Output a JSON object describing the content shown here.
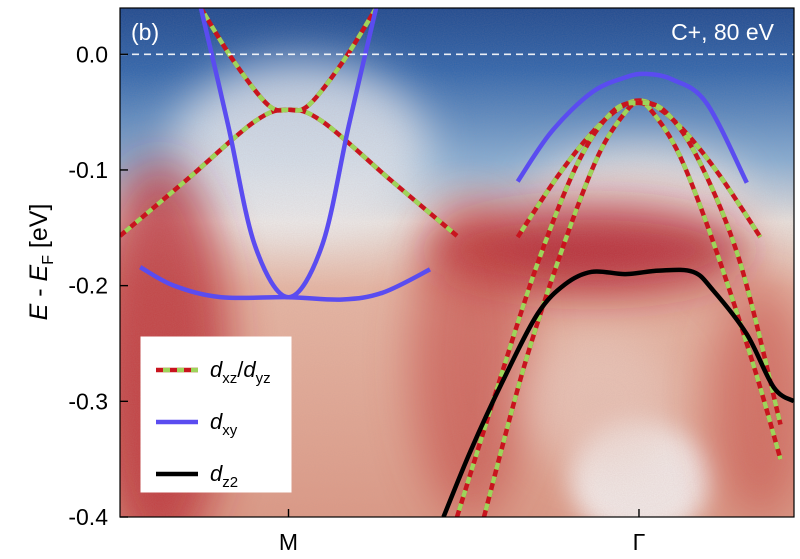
{
  "chart_data": {
    "type": "line",
    "panel_label": "(b)",
    "annotation": "C+, 80 eV",
    "ylabel": {
      "main": "E",
      "minus": " - ",
      "ef": "E",
      "ef_sub": "F",
      "unit": " [eV]"
    },
    "ylim": [
      -0.4,
      0.04
    ],
    "xlim": [
      0,
      1
    ],
    "y_ticks": [
      0.0,
      -0.1,
      -0.2,
      -0.3,
      -0.4
    ],
    "y_tick_labels": [
      "0.0",
      "-0.1",
      "-0.2",
      "-0.3",
      "-0.4"
    ],
    "x_ticks": [
      {
        "x": 0.25,
        "label": "M"
      },
      {
        "x": 0.77,
        "label": "Γ"
      }
    ],
    "fermi_level": 0.0,
    "legend": {
      "placement": "bottom-left",
      "entries": [
        {
          "key": "dxzdyz",
          "style": "dashed-red-green",
          "parts": [
            [
              "d",
              "xz"
            ],
            [
              "d",
              "yz"
            ]
          ]
        },
        {
          "key": "dxy",
          "style": "solid-blue",
          "parts": [
            [
              "d",
              "xy"
            ]
          ]
        },
        {
          "key": "dz2",
          "style": "solid-black",
          "parts": [
            [
              "d",
              "z2"
            ]
          ]
        }
      ]
    },
    "colors": {
      "dxzdyz_red": "#c8141e",
      "dxzdyz_green": "#9ed45a",
      "dxy": "#5a4cf0",
      "dz2": "#000000",
      "map_high": "#a8141e",
      "map_low": "#1f4f96",
      "map_mid": "#e8e2dc"
    },
    "series": [
      {
        "key": "dxzdyz",
        "x": [
          0.0,
          0.1,
          0.2,
          0.25,
          0.3,
          0.4,
          0.5
        ],
        "y": [
          -0.157,
          -0.108,
          -0.058,
          -0.048,
          -0.058,
          -0.108,
          -0.157
        ]
      },
      {
        "key": "dxzdyz",
        "x": [
          0.12,
          0.17,
          0.22,
          0.25,
          0.28,
          0.33,
          0.38
        ],
        "y": [
          0.04,
          -0.007,
          -0.044,
          -0.048,
          -0.044,
          -0.007,
          0.04
        ]
      },
      {
        "key": "dxzdyz",
        "x": [
          0.59,
          0.65,
          0.7,
          0.74,
          0.77,
          0.8,
          0.84,
          0.89,
          0.95
        ],
        "y": [
          -0.158,
          -0.105,
          -0.068,
          -0.047,
          -0.04,
          -0.047,
          -0.068,
          -0.105,
          -0.158
        ]
      },
      {
        "key": "dxzdyz",
        "x": [
          0.54,
          0.6,
          0.66,
          0.71,
          0.75,
          0.77,
          0.79,
          0.83,
          0.88,
          0.94,
          0.98
        ],
        "y": [
          -0.4,
          -0.269,
          -0.162,
          -0.087,
          -0.05,
          -0.042,
          -0.05,
          -0.087,
          -0.162,
          -0.269,
          -0.35
        ]
      },
      {
        "key": "dxzdyz",
        "x": [
          0.5,
          0.56,
          0.62,
          0.68,
          0.73,
          0.77,
          0.81,
          0.86,
          0.92,
          0.98
        ],
        "y": [
          -0.4,
          -0.288,
          -0.18,
          -0.093,
          -0.05,
          -0.042,
          -0.05,
          -0.093,
          -0.18,
          -0.32
        ]
      },
      {
        "key": "dxy",
        "x": [
          0.12,
          0.16,
          0.2,
          0.25,
          0.3,
          0.34,
          0.38
        ],
        "y": [
          0.04,
          -0.06,
          -0.165,
          -0.21,
          -0.165,
          -0.06,
          0.04
        ]
      },
      {
        "key": "dxy",
        "x": [
          0.03,
          0.08,
          0.15,
          0.25,
          0.33,
          0.39,
          0.46
        ],
        "y": [
          -0.184,
          -0.2,
          -0.21,
          -0.21,
          -0.212,
          -0.206,
          -0.186
        ]
      },
      {
        "key": "dxy",
        "x": [
          0.59,
          0.64,
          0.7,
          0.75,
          0.78,
          0.82,
          0.87,
          0.93
        ],
        "y": [
          -0.11,
          -0.067,
          -0.033,
          -0.02,
          -0.017,
          -0.022,
          -0.042,
          -0.111
        ]
      },
      {
        "key": "dz2",
        "x": [
          0.48,
          0.52,
          0.57,
          0.62,
          0.66,
          0.7,
          0.75,
          0.8,
          0.85,
          0.88,
          0.93,
          0.97,
          1.0
        ],
        "y": [
          -0.4,
          -0.343,
          -0.28,
          -0.224,
          -0.199,
          -0.188,
          -0.19,
          -0.187,
          -0.188,
          -0.204,
          -0.242,
          -0.288,
          -0.3
        ]
      }
    ]
  }
}
